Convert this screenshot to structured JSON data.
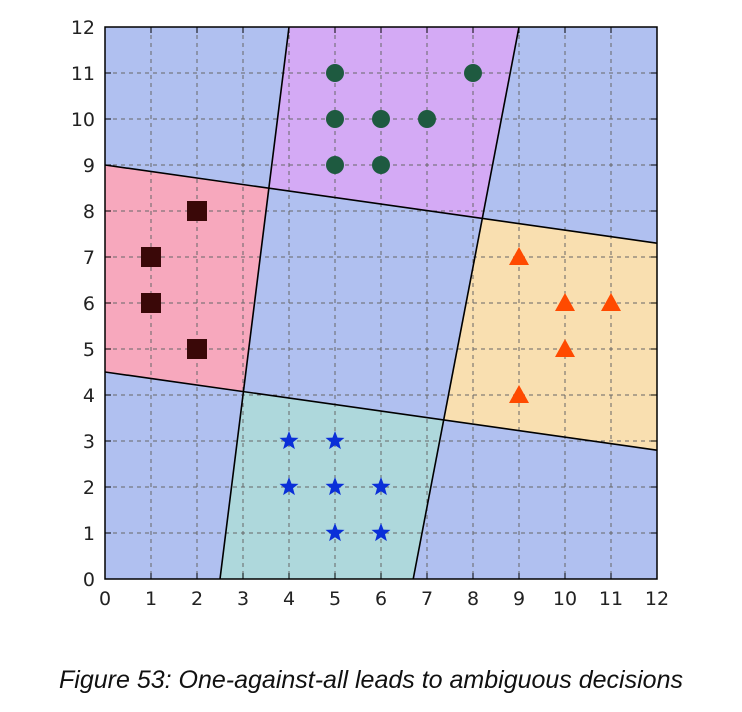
{
  "caption": "Figure 53: One-against-all leads to ambiguous decisions",
  "chart_data": {
    "type": "scatter",
    "xlim": [
      0,
      12
    ],
    "ylim": [
      0,
      12
    ],
    "xticks": [
      "0",
      "1",
      "2",
      "3",
      "4",
      "5",
      "6",
      "7",
      "8",
      "9",
      "10",
      "11",
      "12"
    ],
    "yticks": [
      "0",
      "1",
      "2",
      "3",
      "4",
      "5",
      "6",
      "7",
      "8",
      "9",
      "10",
      "11",
      "12"
    ],
    "grid": true,
    "grid_style": "dashed",
    "colors": {
      "ambiguous": "#b0c0f0",
      "pink": "#f7a8bd",
      "purple": "#d4aaf5",
      "orange": "#f9dfb0",
      "teal": "#aed8dc",
      "boundary": "#000000",
      "grid": "#666666"
    },
    "boundaries": [
      {
        "x": [
          0,
          12
        ],
        "y": [
          9.0,
          7.3
        ]
      },
      {
        "x": [
          0,
          12
        ],
        "y": [
          4.5,
          2.8
        ]
      },
      {
        "x": [
          2.5,
          4.0
        ],
        "y": [
          0,
          12
        ]
      },
      {
        "x": [
          6.7,
          9.0
        ],
        "y": [
          0,
          12
        ]
      }
    ],
    "series": [
      {
        "marker": "square",
        "color": "#3a0808",
        "x": [
          1,
          1,
          2,
          2
        ],
        "y": [
          7,
          6,
          8,
          5
        ]
      },
      {
        "marker": "circle",
        "color": "#1e5a40",
        "x": [
          5,
          8,
          5,
          6,
          7,
          5,
          6
        ],
        "y": [
          11,
          11,
          10,
          10,
          10,
          9,
          9
        ]
      },
      {
        "marker": "triangle",
        "color": "#ff4a00",
        "x": [
          9,
          10,
          11,
          10,
          9
        ],
        "y": [
          7,
          6,
          6,
          5,
          4
        ]
      },
      {
        "marker": "star",
        "color": "#0a2fd8",
        "x": [
          4,
          5,
          4,
          5,
          6,
          5,
          6
        ],
        "y": [
          3,
          3,
          2,
          2,
          2,
          1,
          1
        ]
      }
    ]
  }
}
